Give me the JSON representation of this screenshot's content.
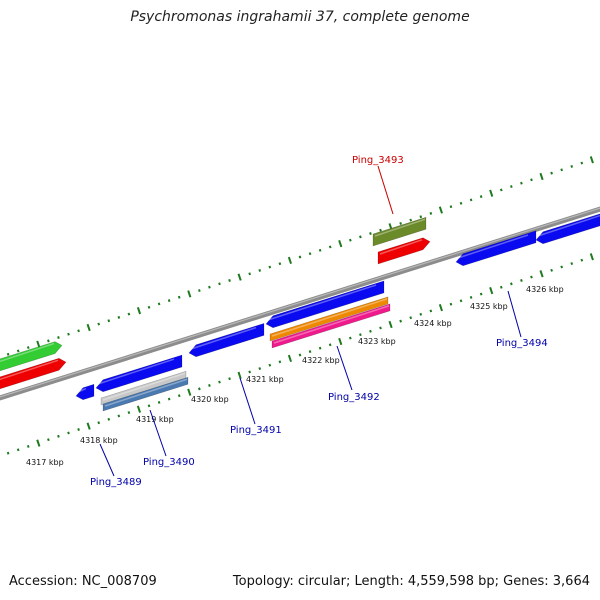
{
  "title": "Psychromonas ingrahamii 37, complete genome",
  "footer": {
    "accession": "Accession: NC_008709",
    "summary": "Topology: circular; Length: 4,559,598 bp; Genes: 3,664"
  },
  "colors": {
    "backbone": "#8c8c8c",
    "ticks": "#1e7a1e",
    "forward_label": "#cc0000",
    "reverse_label": "#0000aa",
    "blue_gene": "#0a0af0",
    "green_gene": "#33cc33",
    "red_gene": "#ee0000",
    "olive_gene": "#6b8a2a",
    "gray_gene": "#c8c8c8",
    "steel_gene": "#4a78b0",
    "orange_gene": "#ee8800",
    "pink_gene": "#ee1a8c"
  },
  "ruler": {
    "unit": "kbp",
    "tick_labels": [
      "4317 kbp",
      "4318 kbp",
      "4319 kbp",
      "4320 kbp",
      "4321 kbp",
      "4322 kbp",
      "4323 kbp",
      "4324 kbp",
      "4325 kbp",
      "4326 kbp"
    ]
  },
  "gene_labels": {
    "forward": [
      "Ping_3493"
    ],
    "reverse": [
      "Ping_3489",
      "Ping_3490",
      "Ping_3491",
      "Ping_3492",
      "Ping_3494"
    ]
  }
}
